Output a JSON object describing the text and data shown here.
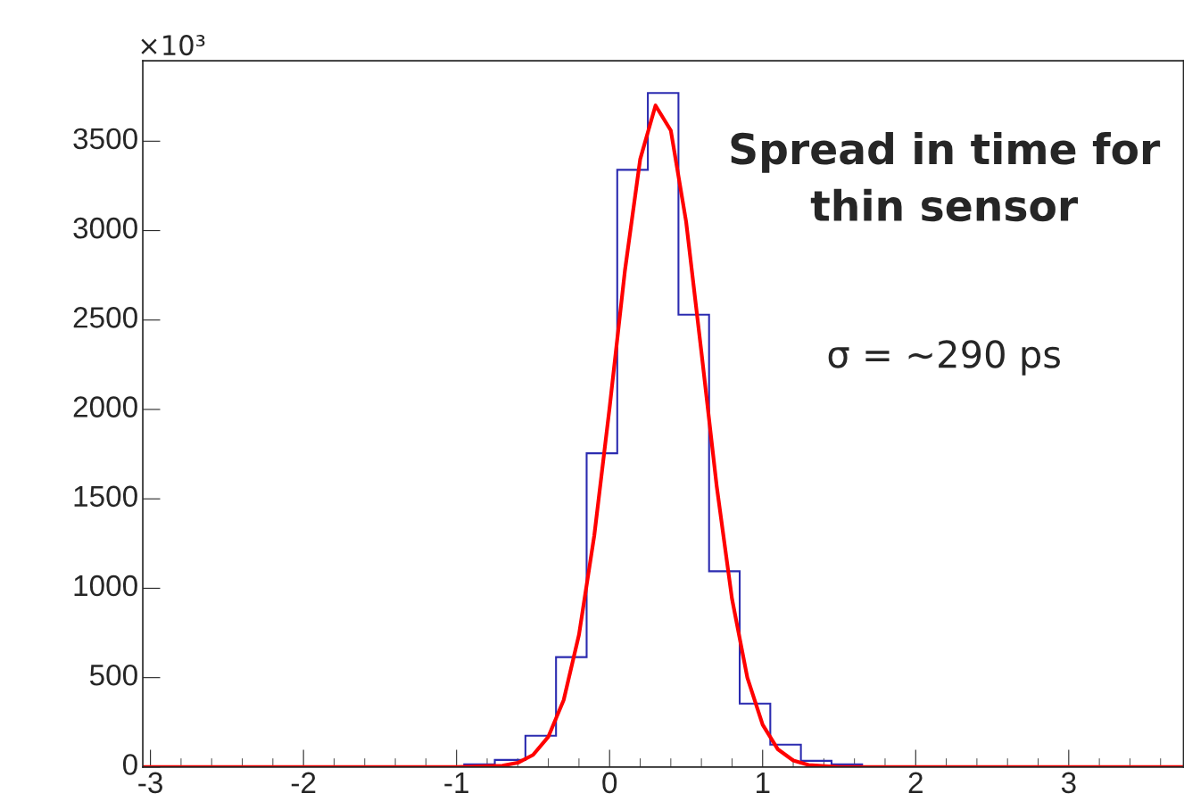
{
  "chart_data": {
    "type": "histogram",
    "color": "#2b2bb0",
    "bins": [
      -0.95,
      -0.75,
      -0.55,
      -0.35,
      -0.15,
      0.05,
      0.25,
      0.45,
      0.65,
      0.85,
      1.05,
      1.25,
      1.45,
      1.65
    ],
    "values": [
      15,
      40,
      175,
      615,
      1755,
      3340,
      3770,
      2530,
      1095,
      355,
      125,
      35,
      15
    ],
    "series": [
      {
        "type": "line",
        "color": "#ff0000",
        "x": [
          -3.05,
          -1.0,
          -0.7,
          -0.6,
          -0.5,
          -0.4,
          -0.3,
          -0.2,
          -0.1,
          0,
          0.1,
          0.2,
          0.3,
          0.4,
          0.5,
          0.6,
          0.7,
          0.8,
          0.9,
          1.0,
          1.1,
          1.2,
          1.3,
          1.5,
          3.75
        ],
        "values": [
          0,
          0,
          8,
          24,
          68,
          170,
          375,
          740,
          1295,
          2010,
          2775,
          3400,
          3700,
          3560,
          3050,
          2320,
          1570,
          940,
          500,
          237,
          99,
          37,
          12,
          0,
          0
        ]
      }
    ],
    "xlim": [
      -3.05,
      3.75
    ],
    "xticks": [
      -3,
      -2,
      -1,
      0,
      1,
      2,
      3
    ],
    "ylim": [
      0,
      3950
    ],
    "yticks": [
      0,
      500,
      1000,
      1500,
      2000,
      2500,
      3000,
      3500
    ],
    "grid": false,
    "annotations": [
      "×10³",
      "Spread in time for\nthin sensor",
      "σ = ~290 ps"
    ]
  }
}
